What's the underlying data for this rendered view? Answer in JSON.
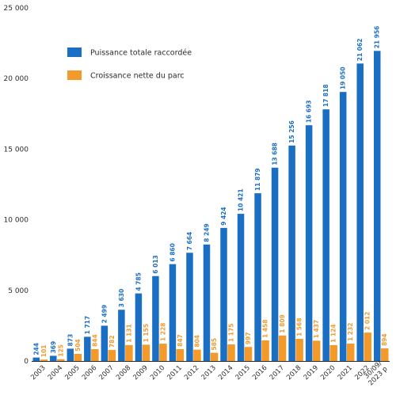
{
  "chart_data": {
    "type": "bar",
    "categories": [
      "2003",
      "2004",
      "2005",
      "2006",
      "2007",
      "2008",
      "2009",
      "2010",
      "2011",
      "2012",
      "2013",
      "2014",
      "2015",
      "2016",
      "2017",
      "2018",
      "2019",
      "2020",
      "2021",
      "2022",
      "30/09/\n2023 p"
    ],
    "series": [
      {
        "name": "Puissance totale raccordée",
        "color": "#1a6fc4",
        "values": [
          244,
          369,
          873,
          1717,
          2499,
          3630,
          4785,
          6013,
          6860,
          7664,
          8249,
          9424,
          10421,
          11879,
          13688,
          15256,
          16693,
          17818,
          19050,
          21062,
          21956
        ],
        "labels": [
          "244",
          "369",
          "873",
          "1 717",
          "2 499",
          "3 630",
          "4 785",
          "6 013",
          "6 860",
          "7 664",
          "8 249",
          "9 424",
          "10 421",
          "11 879",
          "13 688",
          "15 256",
          "16 693",
          "17 818",
          "19 050",
          "21 062",
          "21 956"
        ]
      },
      {
        "name": "Croissance nette du parc",
        "color": "#f39a2b",
        "values": [
          101,
          125,
          504,
          844,
          782,
          1131,
          1155,
          1228,
          847,
          804,
          585,
          1175,
          997,
          1458,
          1809,
          1568,
          1437,
          1124,
          1232,
          2012,
          894
        ],
        "labels": [
          "101",
          "125",
          "504",
          "844",
          "782",
          "1 131",
          "1 155",
          "1 228",
          "847",
          "804",
          "585",
          "1 175",
          "997",
          "1 458",
          "1 809",
          "1 568",
          "1 437",
          "1 124",
          "1 232",
          "2 012",
          "894"
        ]
      }
    ],
    "yticks": [
      0,
      5000,
      10000,
      15000,
      20000,
      25000
    ],
    "ytick_labels": [
      "0",
      "5 000",
      "10 000",
      "15 000",
      "20 000",
      "25 000"
    ],
    "ylim": [
      0,
      25000
    ],
    "title": "",
    "xlabel": "",
    "ylabel": "",
    "grid": false,
    "legend": "top-left"
  }
}
